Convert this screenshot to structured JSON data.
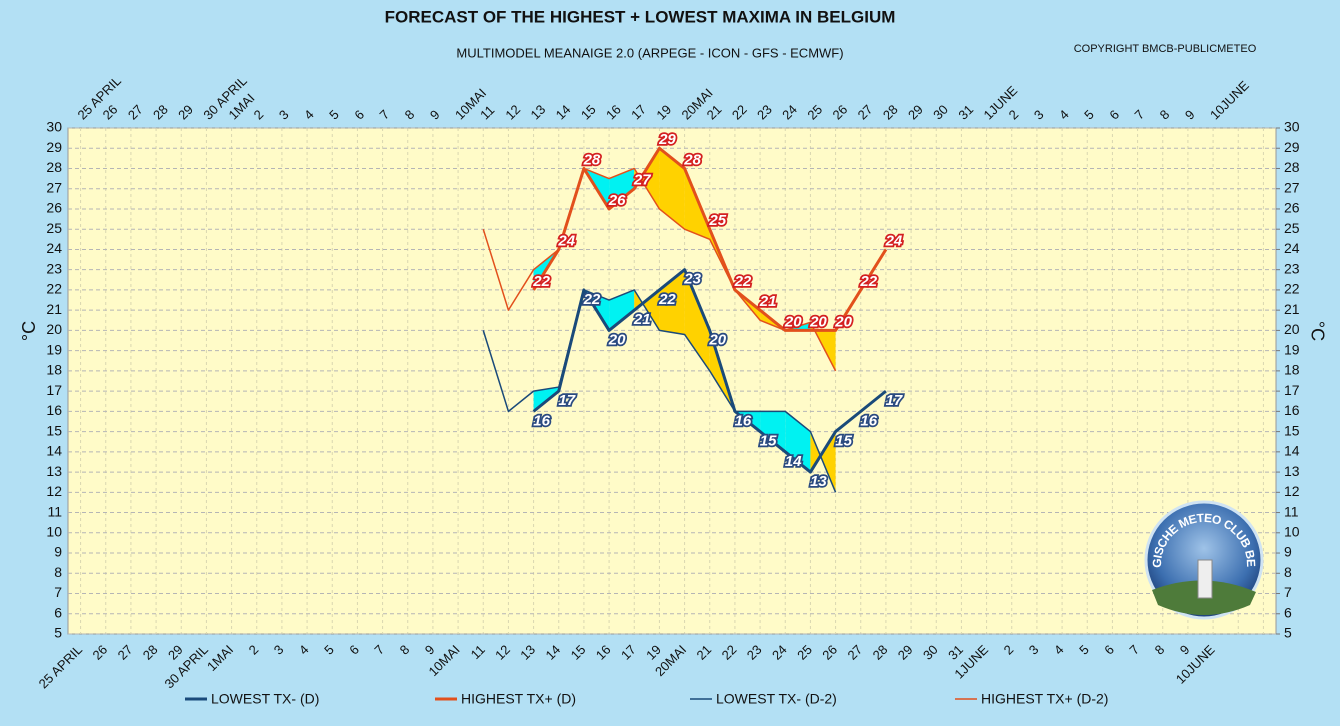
{
  "chart_data": {
    "type": "line",
    "title": "FORECAST OF THE HIGHEST + LOWEST MAXIMA IN BELGIUM",
    "subtitle": "MULTIMODEL MEANAIGE 2.0  (ARPEGE - ICON - GFS - ECMWF)",
    "copyright": "COPYRIGHT BMCB-PUBLICMETEO",
    "ylabel": "°C",
    "y2label": "°C",
    "categories": [
      "25 APRIL",
      "26",
      "27",
      "28",
      "29",
      "30 APRIL",
      "1MAI",
      "2",
      "3",
      "4",
      "5",
      "6",
      "7",
      "8",
      "9",
      "10MAI",
      "11",
      "12",
      "13",
      "14",
      "15",
      "16",
      "17",
      "19",
      "20MAI",
      "21",
      "22",
      "23",
      "24",
      "25",
      "26",
      "27",
      "28",
      "29",
      "30",
      "31",
      "1JUNE",
      "2",
      "3",
      "4",
      "5",
      "6",
      "7",
      "8",
      "9",
      "10JUNE",
      null,
      null
    ],
    "series": [
      {
        "name": "LOWEST TX- (D)",
        "color": "#1a4a7a",
        "line_width": 3,
        "values": [
          null,
          null,
          null,
          null,
          null,
          null,
          null,
          null,
          null,
          null,
          null,
          null,
          null,
          null,
          null,
          null,
          null,
          null,
          16,
          17,
          22,
          20,
          21,
          22,
          23,
          20,
          16,
          15,
          14,
          13,
          15,
          16,
          17,
          null,
          null,
          null,
          null,
          null,
          null,
          null,
          null,
          null,
          null,
          null,
          null,
          null,
          null,
          null
        ]
      },
      {
        "name": "HIGHEST TX+ (D)",
        "color": "#e2501c",
        "line_width": 3,
        "values": [
          null,
          null,
          null,
          null,
          null,
          null,
          null,
          null,
          null,
          null,
          null,
          null,
          null,
          null,
          null,
          null,
          null,
          null,
          22,
          24,
          28,
          26,
          27,
          29,
          28,
          25,
          22,
          21,
          20,
          20,
          20,
          22,
          24,
          null,
          null,
          null,
          null,
          null,
          null,
          null,
          null,
          null,
          null,
          null,
          null,
          null,
          null,
          null
        ]
      },
      {
        "name": "LOWEST TX- (D-2)",
        "color": "#1a4a7a",
        "line_width": 1.5,
        "values": [
          null,
          null,
          null,
          null,
          null,
          null,
          null,
          null,
          null,
          null,
          null,
          null,
          null,
          null,
          null,
          null,
          20,
          16,
          17,
          17.2,
          22,
          21.5,
          22,
          20,
          19.8,
          18,
          16,
          16,
          16,
          15,
          12,
          null,
          null,
          null,
          null,
          null,
          null,
          null,
          null,
          null,
          null,
          null,
          null,
          null,
          null,
          null,
          null,
          null
        ]
      },
      {
        "name": "HIGHEST TX+ (D-2)",
        "color": "#e2501c",
        "line_width": 1.5,
        "values": [
          null,
          null,
          null,
          null,
          null,
          null,
          null,
          null,
          null,
          null,
          null,
          null,
          null,
          null,
          null,
          null,
          25,
          21,
          23,
          24,
          28,
          27.5,
          28,
          26,
          25,
          24.5,
          22,
          20.5,
          20,
          20.4,
          18,
          null,
          null,
          null,
          null,
          null,
          null,
          null,
          null,
          null,
          null,
          null,
          null,
          null,
          null,
          null,
          null,
          null
        ]
      }
    ],
    "fill_pairs": [
      [
        0,
        2
      ],
      [
        1,
        3
      ]
    ],
    "fill_colors": {
      "higher": "#ffd200",
      "lower": "#00f2f2"
    },
    "label_series": [
      0,
      1
    ],
    "ylim": [
      5,
      30
    ],
    "yticks": [
      5,
      6,
      7,
      8,
      9,
      10,
      11,
      12,
      13,
      14,
      15,
      16,
      17,
      18,
      19,
      20,
      21,
      22,
      23,
      24,
      25,
      26,
      27,
      28,
      29,
      30
    ],
    "y2lim": [
      5,
      30
    ],
    "y2ticks": [
      5,
      6,
      7,
      8,
      9,
      10,
      11,
      12,
      13,
      14,
      15,
      16,
      17,
      18,
      19,
      20,
      21,
      22,
      23,
      24,
      25,
      26,
      27,
      28,
      29,
      30
    ],
    "grid": true
  },
  "logo": {
    "text": "BELGISCHE METEO CLUB BELGE"
  }
}
